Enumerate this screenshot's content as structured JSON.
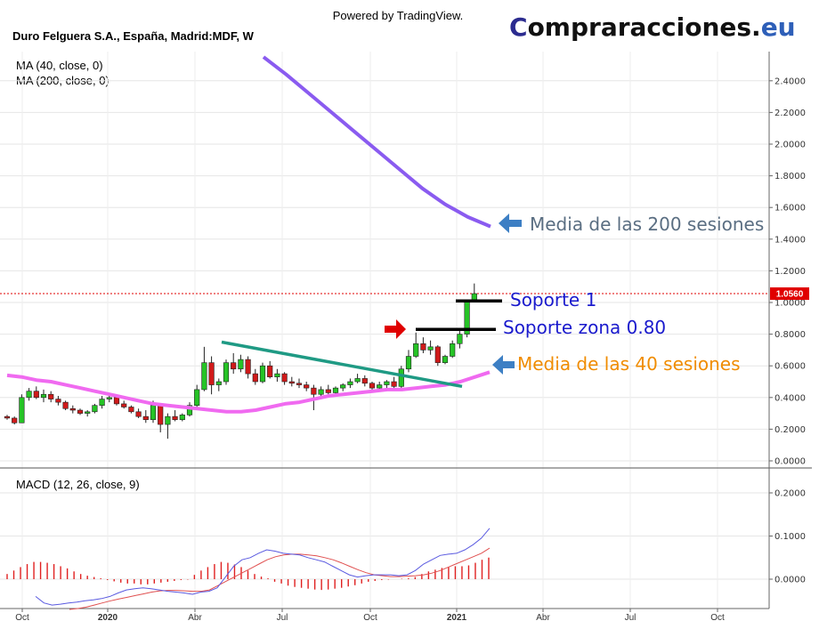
{
  "header": {
    "powered": "Powered by TradingView.",
    "brand_main": "Compraracciones.",
    "brand_tld": "eu",
    "brand_color": "#2b2b8f",
    "brand_tld_color": "#2e5fb8"
  },
  "chart_data": [
    {
      "type": "candlestick",
      "title": "Duro Felguera S.A., España, Madrid:MDF, W",
      "indicators": [
        "MA (40, close, 0)",
        "MA (200, close, 0)"
      ],
      "y_ticks": [
        "0.0000",
        "0.2000",
        "0.4000",
        "0.6000",
        "0.8000",
        "1.0000",
        "1.2000",
        "1.4000",
        "1.6000",
        "1.8000",
        "2.0000",
        "2.2000",
        "2.4000"
      ],
      "ylim": [
        -0.04,
        2.6
      ],
      "x_ticks": [
        "Oct",
        "2020",
        "Abr",
        "Jul",
        "Oct",
        "2021",
        "Abr",
        "Jul",
        "Oct"
      ],
      "last_price": "1.0560",
      "last_price_color": "#e00000",
      "up_color": "#26c426",
      "down_color": "#d01a1a",
      "candles": [
        [
          0.28,
          0.29,
          0.26,
          0.27
        ],
        [
          0.27,
          0.28,
          0.23,
          0.24
        ],
        [
          0.24,
          0.42,
          0.24,
          0.4
        ],
        [
          0.4,
          0.46,
          0.38,
          0.44
        ],
        [
          0.44,
          0.47,
          0.39,
          0.4
        ],
        [
          0.4,
          0.45,
          0.37,
          0.42
        ],
        [
          0.42,
          0.44,
          0.37,
          0.39
        ],
        [
          0.39,
          0.41,
          0.35,
          0.37
        ],
        [
          0.37,
          0.38,
          0.32,
          0.33
        ],
        [
          0.33,
          0.35,
          0.3,
          0.32
        ],
        [
          0.32,
          0.33,
          0.29,
          0.3
        ],
        [
          0.3,
          0.32,
          0.28,
          0.31
        ],
        [
          0.31,
          0.36,
          0.3,
          0.35
        ],
        [
          0.35,
          0.41,
          0.33,
          0.39
        ],
        [
          0.39,
          0.43,
          0.37,
          0.4
        ],
        [
          0.4,
          0.41,
          0.35,
          0.36
        ],
        [
          0.36,
          0.38,
          0.33,
          0.34
        ],
        [
          0.34,
          0.35,
          0.3,
          0.31
        ],
        [
          0.31,
          0.33,
          0.27,
          0.28
        ],
        [
          0.28,
          0.32,
          0.24,
          0.26
        ],
        [
          0.26,
          0.38,
          0.24,
          0.35
        ],
        [
          0.35,
          0.36,
          0.18,
          0.23
        ],
        [
          0.23,
          0.3,
          0.14,
          0.28
        ],
        [
          0.28,
          0.32,
          0.25,
          0.26
        ],
        [
          0.26,
          0.3,
          0.25,
          0.29
        ],
        [
          0.29,
          0.37,
          0.28,
          0.35
        ],
        [
          0.35,
          0.48,
          0.34,
          0.45
        ],
        [
          0.45,
          0.72,
          0.44,
          0.62
        ],
        [
          0.62,
          0.66,
          0.42,
          0.48
        ],
        [
          0.48,
          0.52,
          0.44,
          0.5
        ],
        [
          0.5,
          0.64,
          0.48,
          0.62
        ],
        [
          0.62,
          0.68,
          0.55,
          0.58
        ],
        [
          0.58,
          0.67,
          0.56,
          0.64
        ],
        [
          0.64,
          0.66,
          0.52,
          0.55
        ],
        [
          0.55,
          0.58,
          0.48,
          0.5
        ],
        [
          0.5,
          0.62,
          0.49,
          0.6
        ],
        [
          0.6,
          0.63,
          0.52,
          0.53
        ],
        [
          0.53,
          0.58,
          0.5,
          0.55
        ],
        [
          0.55,
          0.56,
          0.48,
          0.5
        ],
        [
          0.5,
          0.53,
          0.47,
          0.49
        ],
        [
          0.49,
          0.52,
          0.46,
          0.48
        ],
        [
          0.48,
          0.5,
          0.44,
          0.46
        ],
        [
          0.46,
          0.48,
          0.32,
          0.42
        ],
        [
          0.42,
          0.47,
          0.4,
          0.45
        ],
        [
          0.45,
          0.48,
          0.41,
          0.43
        ],
        [
          0.43,
          0.47,
          0.42,
          0.46
        ],
        [
          0.46,
          0.49,
          0.44,
          0.48
        ],
        [
          0.48,
          0.52,
          0.46,
          0.5
        ],
        [
          0.5,
          0.55,
          0.49,
          0.52
        ],
        [
          0.52,
          0.54,
          0.47,
          0.49
        ],
        [
          0.49,
          0.5,
          0.44,
          0.46
        ],
        [
          0.46,
          0.5,
          0.45,
          0.48
        ],
        [
          0.48,
          0.51,
          0.46,
          0.5
        ],
        [
          0.5,
          0.53,
          0.46,
          0.47
        ],
        [
          0.47,
          0.6,
          0.46,
          0.58
        ],
        [
          0.58,
          0.7,
          0.56,
          0.66
        ],
        [
          0.66,
          0.81,
          0.65,
          0.74
        ],
        [
          0.74,
          0.78,
          0.68,
          0.7
        ],
        [
          0.7,
          0.76,
          0.67,
          0.72
        ],
        [
          0.72,
          0.73,
          0.6,
          0.62
        ],
        [
          0.62,
          0.67,
          0.61,
          0.66
        ],
        [
          0.66,
          0.76,
          0.65,
          0.74
        ],
        [
          0.74,
          0.82,
          0.71,
          0.8
        ],
        [
          0.8,
          1.01,
          0.78,
          1.01
        ],
        [
          1.01,
          1.12,
          1.0,
          1.056
        ]
      ],
      "ma40": [
        0.54,
        0.53,
        0.51,
        0.5,
        0.48,
        0.46,
        0.44,
        0.42,
        0.4,
        0.38,
        0.36,
        0.35,
        0.34,
        0.33,
        0.32,
        0.31,
        0.31,
        0.32,
        0.34,
        0.36,
        0.37,
        0.39,
        0.41,
        0.42,
        0.43,
        0.44,
        0.45,
        0.45,
        0.46,
        0.47,
        0.48,
        0.5,
        0.53,
        0.56
      ],
      "ma200": [
        2.55,
        2.44,
        2.32,
        2.2,
        2.08,
        1.96,
        1.84,
        1.72,
        1.62,
        1.54,
        1.48
      ],
      "annotations": {
        "ma200_label": "Media de las 200 sesiones",
        "soporte1_label": "Soporte 1",
        "soporte_zona_label": "Soporte zona 0.80",
        "ma40_label": "Media de las 40 sesiones",
        "soporte1_level": 1.01,
        "soporte_zona_level": 0.83,
        "trendline": [
          [
            0.75,
            0.47
          ]
        ],
        "ma200_label_color": "#5a6e82",
        "support_label_color": "#1a1acd",
        "ma40_label_color": "#f08c00",
        "arrow_blue": "#3d7fc4",
        "arrow_red": "#e00000",
        "trend_color": "#1f9a84",
        "ma40_color": "#f06af0",
        "ma200_color": "#8a5bf0"
      }
    },
    {
      "type": "line",
      "title": "MACD (12, 26, close, 9)",
      "y_ticks": [
        "0.0000",
        "0.1000",
        "0.2000"
      ],
      "ylim": [
        -0.07,
        0.23
      ],
      "macd": [
        -0.04,
        -0.055,
        -0.06,
        -0.058,
        -0.055,
        -0.053,
        -0.05,
        -0.048,
        -0.045,
        -0.04,
        -0.032,
        -0.025,
        -0.022,
        -0.02,
        -0.022,
        -0.025,
        -0.028,
        -0.03,
        -0.032,
        -0.035,
        -0.03,
        -0.028,
        -0.02,
        0.005,
        0.03,
        0.045,
        0.05,
        0.06,
        0.068,
        0.065,
        0.06,
        0.058,
        0.056,
        0.05,
        0.045,
        0.04,
        0.03,
        0.02,
        0.01,
        0.005,
        0.008,
        0.01,
        0.01,
        0.01,
        0.008,
        0.01,
        0.02,
        0.035,
        0.045,
        0.055,
        0.058,
        0.06,
        0.068,
        0.08,
        0.095,
        0.118
      ],
      "signal": [
        -0.07,
        -0.068,
        -0.065,
        -0.06,
        -0.055,
        -0.05,
        -0.046,
        -0.042,
        -0.038,
        -0.034,
        -0.03,
        -0.027,
        -0.026,
        -0.026,
        -0.027,
        -0.028,
        -0.028,
        -0.025,
        -0.015,
        -0.005,
        0.005,
        0.015,
        0.025,
        0.035,
        0.045,
        0.052,
        0.056,
        0.058,
        0.058,
        0.056,
        0.054,
        0.05,
        0.045,
        0.038,
        0.03,
        0.022,
        0.015,
        0.01,
        0.008,
        0.006,
        0.006,
        0.007,
        0.008,
        0.01,
        0.014,
        0.02,
        0.028,
        0.036,
        0.044,
        0.052,
        0.06,
        0.072
      ],
      "histogram": [
        0.012,
        0.02,
        0.028,
        0.035,
        0.04,
        0.04,
        0.038,
        0.035,
        0.03,
        0.025,
        0.018,
        0.012,
        0.008,
        0.005,
        0.002,
        -0.002,
        -0.005,
        -0.008,
        -0.01,
        -0.01,
        -0.012,
        -0.012,
        -0.01,
        -0.008,
        -0.006,
        -0.004,
        -0.002,
        -0.001,
        0.01,
        0.02,
        0.028,
        0.035,
        0.04,
        0.038,
        0.034,
        0.028,
        0.02,
        0.012,
        0.006,
        0.002,
        -0.006,
        -0.01,
        -0.015,
        -0.018,
        -0.02,
        -0.022,
        -0.024,
        -0.025,
        -0.024,
        -0.022,
        -0.02,
        -0.017,
        -0.014,
        -0.01,
        -0.006,
        -0.004,
        -0.002,
        -0.001,
        0.0,
        0.001,
        0.002,
        0.005,
        0.012,
        0.018,
        0.022,
        0.026,
        0.028,
        0.03,
        0.03,
        0.032,
        0.038,
        0.045,
        0.05
      ],
      "macd_color": "#5a5ae0",
      "signal_color": "#e05050",
      "hist_color": "#e02020"
    }
  ]
}
